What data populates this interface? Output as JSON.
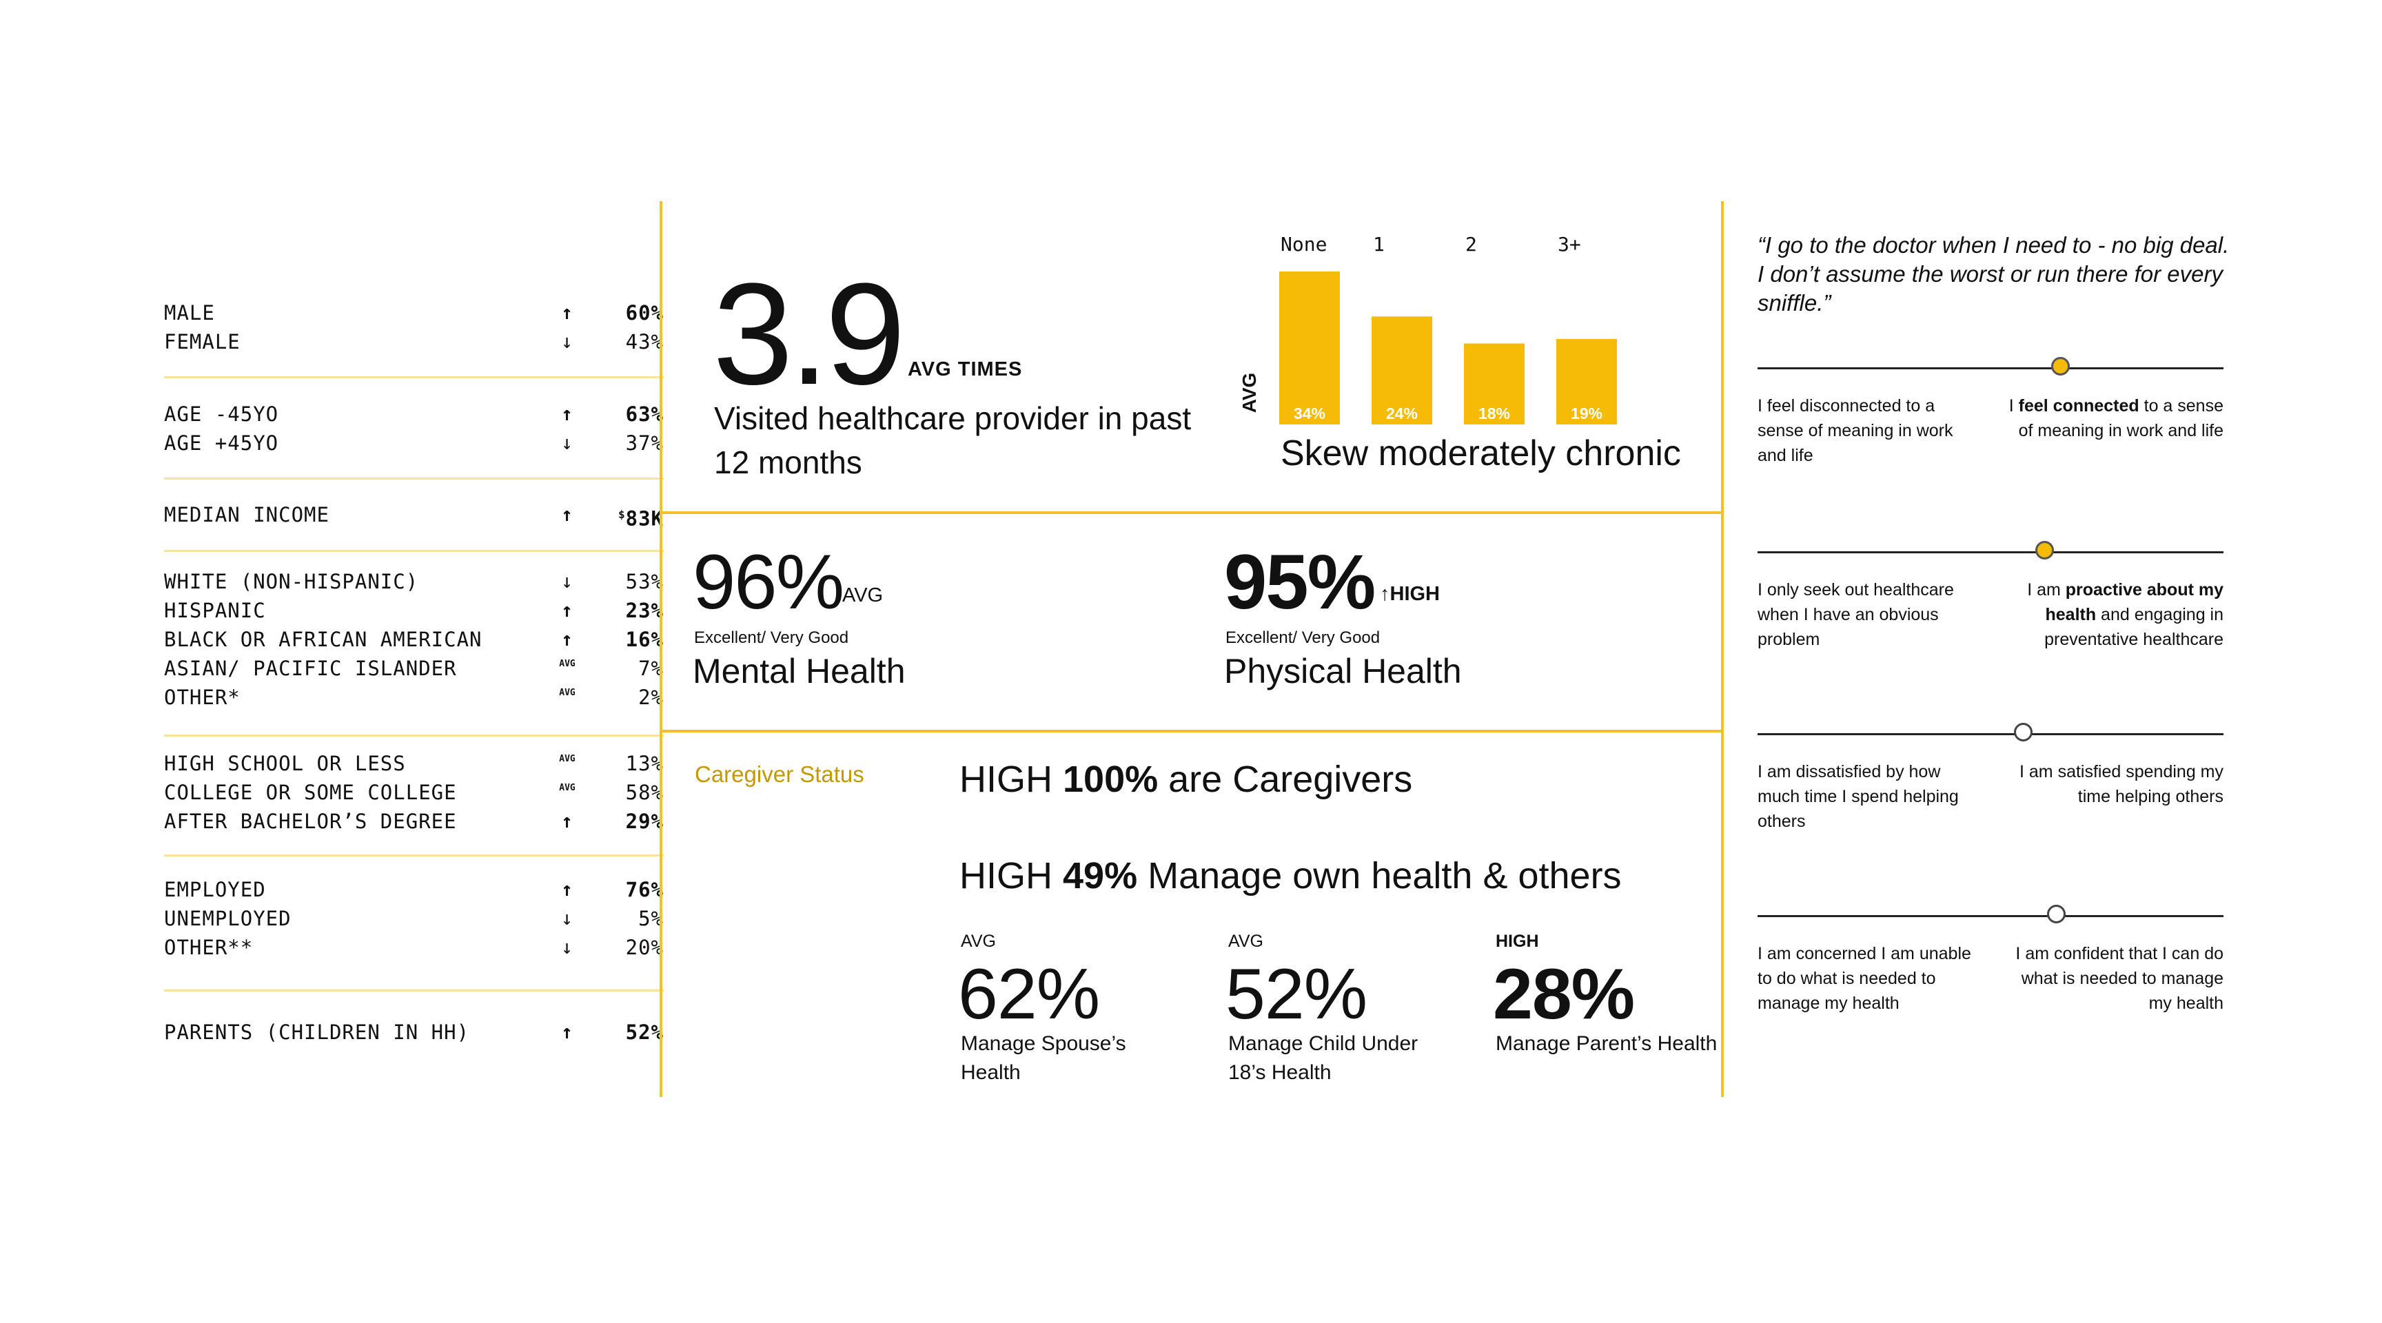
{
  "demographics": {
    "gender": [
      {
        "label": "MALE",
        "indicator": "↑",
        "value": "60%",
        "emph": true
      },
      {
        "label": "FEMALE",
        "indicator": "↓",
        "value": "43%",
        "emph": false
      }
    ],
    "age": [
      {
        "label": "AGE -45YO",
        "indicator": "↑",
        "value": "63%",
        "emph": true
      },
      {
        "label": "AGE +45YO",
        "indicator": "↓",
        "value": "37%",
        "emph": false
      }
    ],
    "income": [
      {
        "label": "MEDIAN INCOME",
        "indicator": "↑",
        "value_prefix": "$",
        "value": "83K",
        "emph": true
      }
    ],
    "ethnicity": [
      {
        "label": "WHITE (NON-HISPANIC)",
        "indicator": "↓",
        "value": "53%",
        "emph": false
      },
      {
        "label": "HISPANIC",
        "indicator": "↑",
        "value": "23%",
        "emph": true
      },
      {
        "label": "BLACK OR AFRICAN AMERICAN",
        "indicator": "↑",
        "value": "16%",
        "emph": true
      },
      {
        "label": "ASIAN/ PACIFIC ISLANDER",
        "indicator": "AVG",
        "value": "7%",
        "emph": false
      },
      {
        "label": "OTHER*",
        "indicator": "AVG",
        "value": "2%",
        "emph": false
      }
    ],
    "education": [
      {
        "label": "HIGH SCHOOL OR LESS",
        "indicator": "AVG",
        "value": "13%",
        "emph": false
      },
      {
        "label": "COLLEGE OR SOME COLLEGE",
        "indicator": "AVG",
        "value": "58%",
        "emph": false
      },
      {
        "label": "AFTER BACHELOR’S DEGREE",
        "indicator": "↑",
        "value": "29%",
        "emph": true
      }
    ],
    "employment": [
      {
        "label": "EMPLOYED",
        "indicator": "↑",
        "value": "76%",
        "emph": true
      },
      {
        "label": "UNEMPLOYED",
        "indicator": "↓",
        "value": "5%",
        "emph": false
      },
      {
        "label": "OTHER**",
        "indicator": "↓",
        "value": "20%",
        "emph": false
      }
    ],
    "parents": [
      {
        "label": "PARENTS (CHILDREN IN HH)",
        "indicator": "↑",
        "value": "52%",
        "emph": true
      }
    ]
  },
  "visits": {
    "value": "3.9",
    "unit": "AVG TIMES",
    "description": "Visited healthcare provider in past 12 months"
  },
  "chart_data": {
    "type": "bar",
    "categories": [
      "None",
      "1",
      "2",
      "3+"
    ],
    "values": [
      34,
      24,
      18,
      19
    ],
    "data_labels": [
      "34%",
      "24%",
      "18%",
      "19%"
    ],
    "ylabel": "AVG",
    "caption": "Skew moderately chronic",
    "ylim": [
      0,
      34
    ],
    "grid": false,
    "bar_color": "#f5bb06"
  },
  "mental": {
    "value": "96%",
    "tag": "AVG",
    "sub": "Excellent/ Very Good",
    "label": "Mental Health"
  },
  "physical": {
    "value": "95%",
    "tag": "HIGH",
    "tag_arrow": "↑",
    "sub": "Excellent/ Very Good",
    "label": "Physical Health"
  },
  "caregiver": {
    "section_label": "Caregiver Status",
    "line1": {
      "prefix": "HIGH ",
      "bold": "100%",
      "suffix": " are Caregivers"
    },
    "line2": {
      "prefix": "HIGH ",
      "bold": "49%",
      "suffix": " Manage own health & others"
    },
    "stats": [
      {
        "tag": "AVG",
        "value": "62%",
        "desc": "Manage Spouse’s Health",
        "emph": false
      },
      {
        "tag": "AVG",
        "value": "52%",
        "desc": "Manage Child Under 18’s Health",
        "emph": false
      },
      {
        "tag": "HIGH",
        "value": "28%",
        "desc": "Manage Parent’s Health",
        "emph": true
      }
    ]
  },
  "quote": "“I go to the doctor when I need to - no big deal. I don’t assume the worst or run there for every sniffle.”",
  "sliders": [
    {
      "left": "I feel disconnected to a sense of meaning in work and life",
      "right_pre": "I ",
      "right_bold": "feel connected",
      "right_post": " to a sense of meaning in work and life",
      "position": 0.65,
      "filled": true
    },
    {
      "left": "I only seek out healthcare when I have an obvious problem",
      "right_pre": "I am ",
      "right_bold": "proactive about my health",
      "right_post": " and engaging in preventative healthcare",
      "position": 0.615,
      "filled": true
    },
    {
      "left": "I am dissatisfied by how much time I spend helping others",
      "right_pre": "I am satisfied spending my time helping others",
      "right_bold": "",
      "right_post": "",
      "position": 0.57,
      "filled": false
    },
    {
      "left": "I am concerned I am unable to do what is needed to manage my health",
      "right_pre": "I am confident that I can do what is needed to manage my health",
      "right_bold": "",
      "right_post": "",
      "position": 0.64,
      "filled": false
    }
  ],
  "colors": {
    "accent": "#f3c02a",
    "bar": "#f5bb06",
    "divider": "#fbe29c",
    "caregiver_label": "#c69800"
  }
}
